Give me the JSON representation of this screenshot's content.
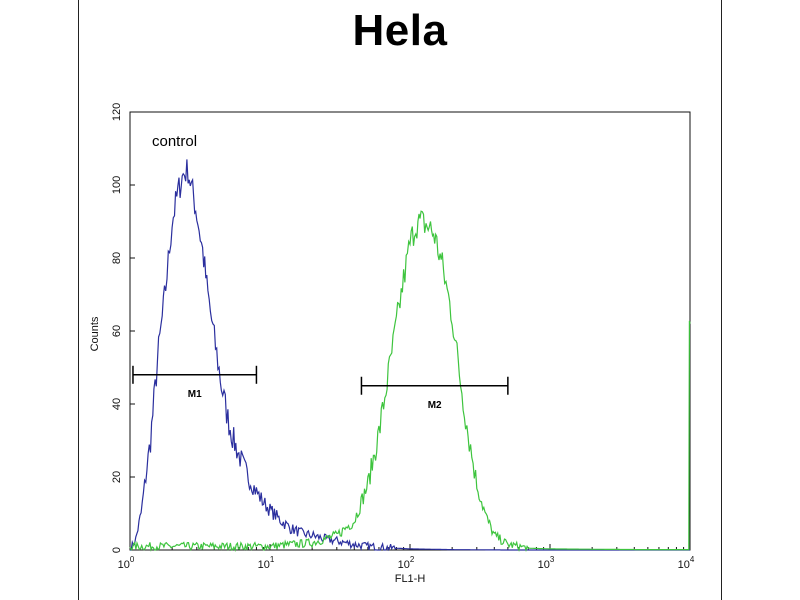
{
  "chart_data": {
    "type": "line",
    "title": "Hela",
    "xlabel": "FL1-H",
    "ylabel": "Counts",
    "xscale": "log",
    "xlim": [
      1,
      10000
    ],
    "ylim": [
      0,
      120
    ],
    "y_ticks": [
      "0",
      "20",
      "40",
      "60",
      "80",
      "100",
      "120"
    ],
    "x_ticks": [
      {
        "base": "10",
        "exp": "0"
      },
      {
        "base": "10",
        "exp": "1"
      },
      {
        "base": "10",
        "exp": "2"
      },
      {
        "base": "10",
        "exp": "3"
      },
      {
        "base": "10",
        "exp": "4"
      }
    ],
    "annotation": "control",
    "gates": [
      {
        "label": "M1",
        "range": [
          1.05,
          8.0
        ],
        "y": 48
      },
      {
        "label": "M2",
        "range": [
          45,
          500
        ],
        "y": 45
      }
    ],
    "series": [
      {
        "color": "#2b2f9e",
        "x": [
          1.0,
          1.1,
          1.2,
          1.4,
          1.6,
          1.8,
          2.0,
          2.2,
          2.4,
          2.6,
          2.8,
          3.0,
          3.3,
          3.6,
          4.0,
          4.5,
          5.0,
          5.5,
          6.0,
          7.0,
          8.0,
          9.0,
          10,
          12,
          14,
          17,
          20,
          25,
          30,
          40,
          50,
          70,
          100,
          200,
          500,
          1000,
          10000
        ],
        "y": [
          0,
          3,
          10,
          30,
          55,
          72,
          90,
          98,
          103,
          104,
          98,
          92,
          82,
          70,
          58,
          45,
          36,
          30,
          26,
          20,
          16,
          13,
          11,
          8,
          6,
          4.5,
          4,
          3,
          2.5,
          1.5,
          1,
          0.6,
          0.3,
          0.1,
          0,
          0,
          0
        ]
      },
      {
        "color": "#3ec43e",
        "x": [
          1.0,
          2.0,
          10,
          20,
          30,
          40,
          50,
          60,
          70,
          80,
          90,
          100,
          110,
          120,
          130,
          140,
          150,
          170,
          200,
          230,
          260,
          300,
          350,
          400,
          500,
          600,
          700,
          1000,
          2000,
          5000,
          9800,
          9900,
          10000
        ],
        "y": [
          1,
          1,
          1,
          2,
          4,
          8,
          18,
          32,
          48,
          62,
          74,
          84,
          89,
          90,
          89,
          88,
          86,
          78,
          64,
          46,
          32,
          18,
          9,
          4,
          1.5,
          1,
          0.5,
          0.3,
          0.2,
          0.1,
          0.1,
          60,
          62
        ]
      }
    ]
  }
}
